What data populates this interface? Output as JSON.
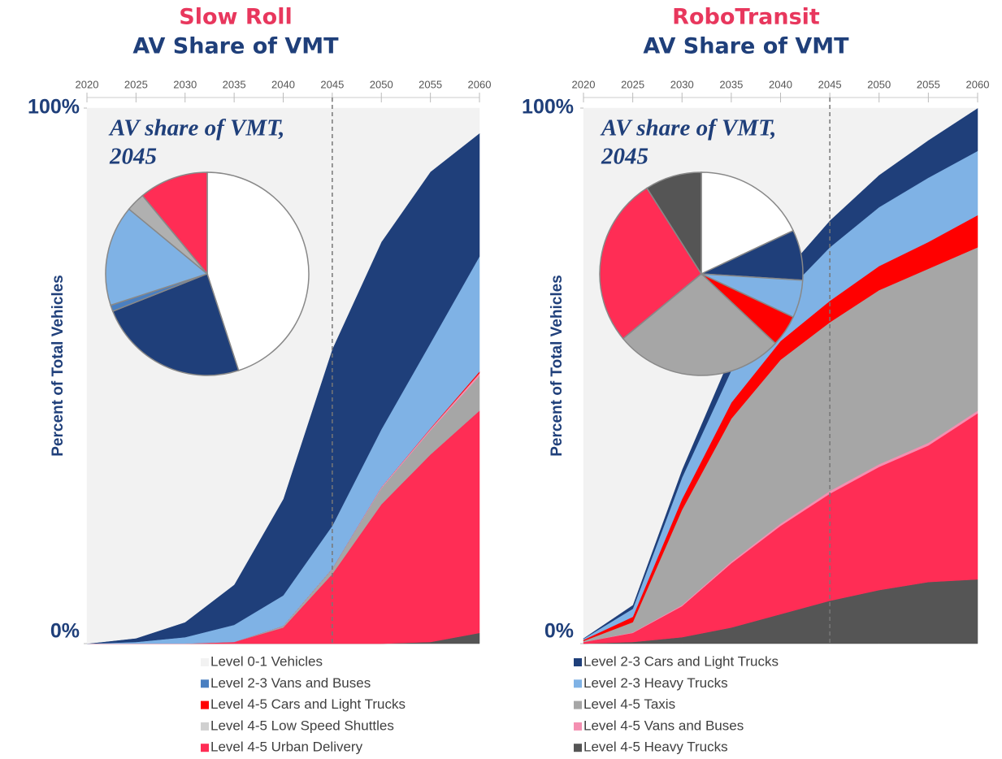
{
  "chart_data": [
    {
      "type": "area",
      "title": "Slow Roll",
      "subtitle": "AV Share of VMT",
      "ylabel": "Percent of Total Vehicles",
      "x": [
        2020,
        2025,
        2030,
        2035,
        2040,
        2045,
        2050,
        2055,
        2060
      ],
      "xlim": [
        2020,
        2060
      ],
      "xticks": [
        2020,
        2025,
        2030,
        2035,
        2040,
        2045,
        2050,
        2055,
        2060
      ],
      "ylim": [
        0,
        100
      ],
      "yticks": [
        {
          "value": 0,
          "label": "0%"
        },
        {
          "value": 100,
          "label": "100%"
        }
      ],
      "reference_x": 2045,
      "series": [
        {
          "color": "#555555",
          "values": [
            0,
            0,
            0,
            0,
            0,
            0,
            0,
            0.3,
            2
          ]
        },
        {
          "color": "#ff2d55",
          "values": [
            0,
            0,
            0,
            0.3,
            3,
            13,
            26,
            35,
            41.5
          ]
        },
        {
          "color": "#a6a6a6",
          "values": [
            0,
            0,
            0,
            0,
            0.3,
            1,
            3,
            4.5,
            6.5
          ]
        },
        {
          "color": "#f48fb1",
          "values": [
            0,
            0,
            0,
            0,
            0,
            0,
            0.2,
            0.3,
            0.5
          ]
        },
        {
          "color": "#ff0000",
          "values": [
            0,
            0,
            0,
            0,
            0,
            0,
            0,
            0.1,
            0.3
          ]
        },
        {
          "color": "#7fb2e5",
          "values": [
            0,
            0.3,
            1.2,
            3.2,
            5.7,
            8,
            10.8,
            15.9,
            21.5
          ]
        },
        {
          "color": "#1f3f7a",
          "values": [
            0,
            0.7,
            2.8,
            7.5,
            18,
            33,
            35,
            32,
            23
          ]
        },
        {
          "color": "#f2f2f2",
          "values": [
            100,
            99,
            96,
            89,
            73,
            45,
            25,
            11.9,
            4.7
          ]
        }
      ],
      "inset": {
        "type": "pie",
        "title": [
          "AV share of VMT,",
          "2045"
        ],
        "values": [
          45,
          24,
          1,
          16,
          3,
          11
        ],
        "colors": [
          "#ffffff",
          "#1f3f7a",
          "#4a7fc1",
          "#7fb2e5",
          "#b0b0b0",
          "#ff2d55"
        ]
      }
    },
    {
      "type": "area",
      "title": "RoboTransit",
      "subtitle": "AV Share of VMT",
      "ylabel": "Percent of Total Vehicles",
      "x": [
        2020,
        2025,
        2030,
        2035,
        2040,
        2045,
        2050,
        2055,
        2060
      ],
      "xlim": [
        2020,
        2060
      ],
      "xticks": [
        2020,
        2025,
        2030,
        2035,
        2040,
        2045,
        2050,
        2055,
        2060
      ],
      "ylim": [
        0,
        100
      ],
      "yticks": [
        {
          "value": 0,
          "label": "0%"
        },
        {
          "value": 100,
          "label": "100%"
        }
      ],
      "reference_x": 2045,
      "series": [
        {
          "color": "#555555",
          "values": [
            0,
            0.3,
            1.2,
            3,
            5.5,
            8,
            10,
            11.5,
            12
          ]
        },
        {
          "color": "#ff2d55",
          "values": [
            0.3,
            1.7,
            5.8,
            12,
            16.5,
            20,
            23,
            25.5,
            31
          ]
        },
        {
          "color": "#f48fb1",
          "values": [
            0,
            0.1,
            0.2,
            0.3,
            0.4,
            0.5,
            0.5,
            0.5,
            0.5
          ]
        },
        {
          "color": "#a6a6a6",
          "values": [
            0.2,
            1.9,
            17.8,
            26.7,
            30.6,
            31.5,
            32.5,
            32.5,
            30.5
          ]
        },
        {
          "color": "#ff0000",
          "values": [
            0.2,
            1,
            2,
            3,
            3.5,
            4,
            4.5,
            5,
            6
          ]
        },
        {
          "color": "#7fb2e5",
          "values": [
            0.2,
            1.5,
            4,
            6,
            8,
            10,
            11,
            12,
            12
          ]
        },
        {
          "color": "#1f3f7a",
          "values": [
            0.1,
            0.7,
            1.5,
            3,
            4,
            5,
            6,
            7,
            8
          ]
        },
        {
          "color": "#f2f2f2",
          "values": [
            99,
            92.8,
            67.5,
            46,
            31.5,
            21,
            12.5,
            6,
            0
          ]
        }
      ],
      "inset": {
        "type": "pie",
        "title": [
          "AV share of VMT,",
          "2045"
        ],
        "values": [
          18,
          8,
          6,
          5,
          27,
          27,
          9
        ],
        "colors": [
          "#ffffff",
          "#1f3f7a",
          "#7fb2e5",
          "#ff0000",
          "#a6a6a6",
          "#ff2d55",
          "#555555"
        ]
      }
    }
  ],
  "legend": [
    {
      "name": "Level 0-1 Vehicles",
      "color": "#f2f2f2"
    },
    {
      "name": "Level 2-3 Vans and Buses",
      "color": "#4a7fc1"
    },
    {
      "name": "Level 4-5 Cars and Light Trucks",
      "color": "#ff0000"
    },
    {
      "name": "Level 4-5 Low Speed Shuttles",
      "color": "#d0d0d0"
    },
    {
      "name": "Level 4-5 Urban Delivery",
      "color": "#ff2d55"
    },
    {
      "name": "Level 2-3 Cars and Light Trucks",
      "color": "#1f3f7a"
    },
    {
      "name": "Level 2-3 Heavy Trucks",
      "color": "#7fb2e5"
    },
    {
      "name": "Level 4-5 Taxis",
      "color": "#a6a6a6"
    },
    {
      "name": "Level 4-5 Vans and Buses",
      "color": "#f48fb1"
    },
    {
      "name": "Level 4-5 Heavy Trucks",
      "color": "#555555"
    }
  ]
}
